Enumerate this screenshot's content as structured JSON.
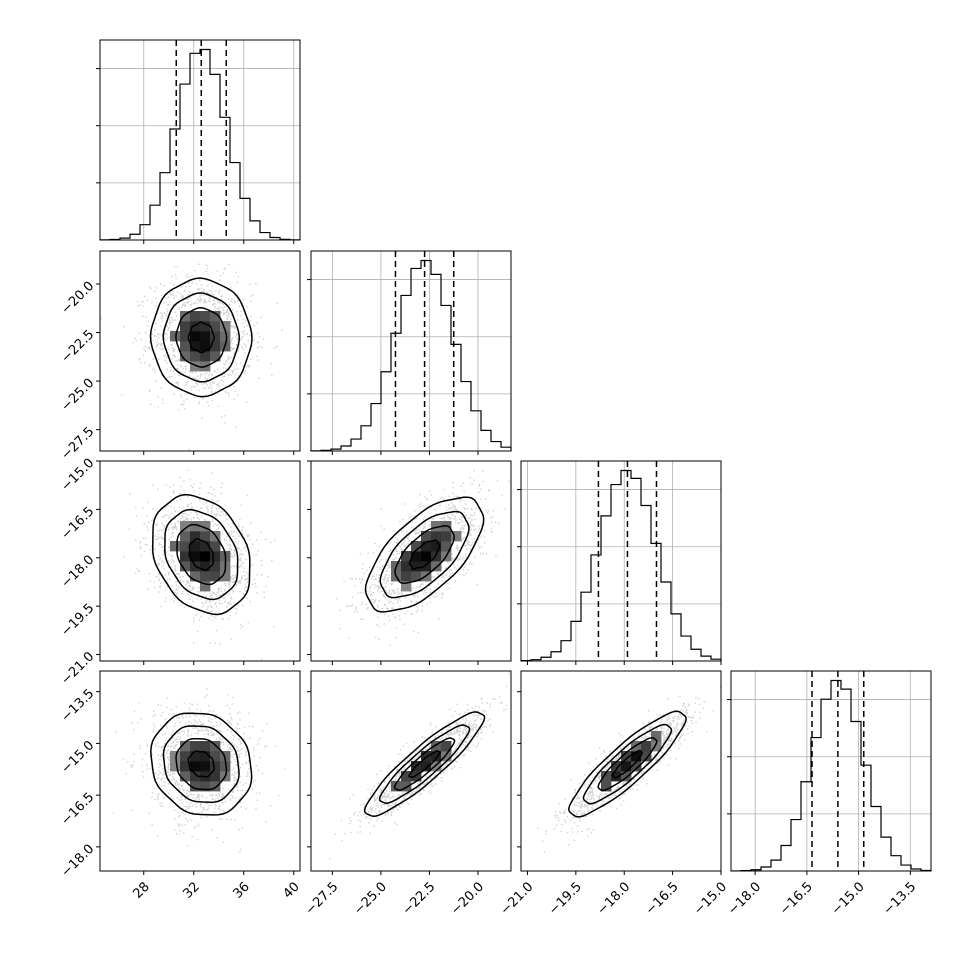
{
  "chart_data": {
    "type": "corner",
    "title": "",
    "parameters": [
      {
        "index": 0,
        "mean": 32.6,
        "sd": 2.0,
        "range": [
          24.5,
          40.5
        ],
        "ticks": [
          28,
          32,
          36,
          40
        ],
        "tick_labels": [
          "28",
          "32",
          "36",
          "40"
        ],
        "quantiles": [
          30.6,
          32.6,
          34.6
        ]
      },
      {
        "index": 1,
        "mean": -22.75,
        "sd": 1.5,
        "range": [
          -28.6,
          -18.3
        ],
        "ticks": [
          -27.5,
          -25.0,
          -22.5,
          -20.0
        ],
        "tick_labels": [
          "−27.5",
          "−25.0",
          "−22.5",
          "−20.0"
        ],
        "quantiles": [
          -24.25,
          -22.75,
          -21.25
        ]
      },
      {
        "index": 2,
        "mean": -17.9,
        "sd": 0.9,
        "range": [
          -21.2,
          -15.0
        ],
        "ticks": [
          -21.0,
          -19.5,
          -18.0,
          -16.5,
          -15.0
        ],
        "tick_labels": [
          "−21.0",
          "−19.5",
          "−18.0",
          "−16.5",
          "−15.0"
        ],
        "quantiles": [
          -18.8,
          -17.9,
          -17.0
        ]
      },
      {
        "index": 3,
        "mean": -15.6,
        "sd": 0.75,
        "range": [
          -18.7,
          -12.9
        ],
        "ticks": [
          -18.0,
          -16.5,
          -15.0,
          -13.5
        ],
        "tick_labels": [
          "−18.0",
          "−16.5",
          "−15.0",
          "−13.5"
        ],
        "quantiles": [
          -16.35,
          -15.6,
          -14.85
        ]
      }
    ],
    "correlations": {
      "1-0": -0.05,
      "2-0": -0.25,
      "2-1": 0.65,
      "3-0": -0.1,
      "3-1": 0.9,
      "3-2": 0.88
    },
    "hist_bins": 20,
    "contour_levels_sigma": [
      0.5,
      1.0,
      1.5,
      2.0
    ],
    "grid": true
  }
}
